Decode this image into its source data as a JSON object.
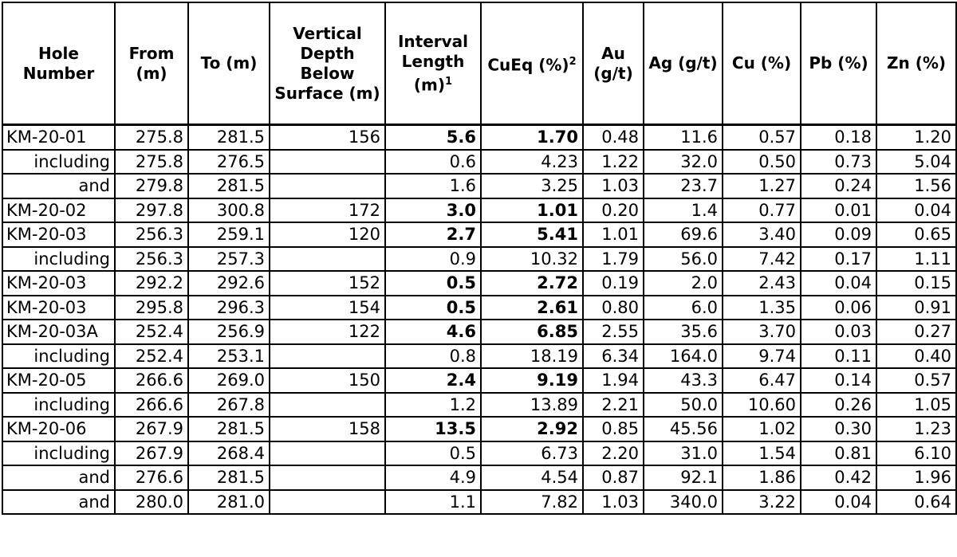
{
  "headers": [
    {
      "label": "Hole Number",
      "sup": ""
    },
    {
      "label": "From (m)",
      "sup": ""
    },
    {
      "label": "To (m)",
      "sup": ""
    },
    {
      "label": "Vertical Depth Below Surface (m)",
      "sup": ""
    },
    {
      "label": "Interval Length (m)",
      "sup": "1"
    },
    {
      "label": "CuEq (%)",
      "sup": "2"
    },
    {
      "label": "Au (g/t)",
      "sup": ""
    },
    {
      "label": "Ag (g/t)",
      "sup": ""
    },
    {
      "label": "Cu (%)",
      "sup": ""
    },
    {
      "label": "Pb (%)",
      "sup": ""
    },
    {
      "label": "Zn (%)",
      "sup": ""
    }
  ],
  "rows": [
    {
      "hole": "KM-20-01",
      "sub": false,
      "from": "275.8",
      "to": "281.5",
      "vdepth": "156",
      "interval": "5.6",
      "cueq": "1.70",
      "au": "0.48",
      "ag": "11.6",
      "cu": "0.57",
      "pb": "0.18",
      "zn": "1.20"
    },
    {
      "hole": "including",
      "sub": true,
      "from": "275.8",
      "to": "276.5",
      "vdepth": "",
      "interval": "0.6",
      "cueq": "4.23",
      "au": "1.22",
      "ag": "32.0",
      "cu": "0.50",
      "pb": "0.73",
      "zn": "5.04"
    },
    {
      "hole": "and",
      "sub": true,
      "from": "279.8",
      "to": "281.5",
      "vdepth": "",
      "interval": "1.6",
      "cueq": "3.25",
      "au": "1.03",
      "ag": "23.7",
      "cu": "1.27",
      "pb": "0.24",
      "zn": "1.56"
    },
    {
      "hole": "KM-20-02",
      "sub": false,
      "from": "297.8",
      "to": "300.8",
      "vdepth": "172",
      "interval": "3.0",
      "cueq": "1.01",
      "au": "0.20",
      "ag": "1.4",
      "cu": "0.77",
      "pb": "0.01",
      "zn": "0.04"
    },
    {
      "hole": "KM-20-03",
      "sub": false,
      "from": "256.3",
      "to": "259.1",
      "vdepth": "120",
      "interval": "2.7",
      "cueq": "5.41",
      "au": "1.01",
      "ag": "69.6",
      "cu": "3.40",
      "pb": "0.09",
      "zn": "0.65"
    },
    {
      "hole": "including",
      "sub": true,
      "from": "256.3",
      "to": "257.3",
      "vdepth": "",
      "interval": "0.9",
      "cueq": "10.32",
      "au": "1.79",
      "ag": "56.0",
      "cu": "7.42",
      "pb": "0.17",
      "zn": "1.11"
    },
    {
      "hole": "KM-20-03",
      "sub": false,
      "from": "292.2",
      "to": "292.6",
      "vdepth": "152",
      "interval": "0.5",
      "cueq": "2.72",
      "au": "0.19",
      "ag": "2.0",
      "cu": "2.43",
      "pb": "0.04",
      "zn": "0.15"
    },
    {
      "hole": "KM-20-03",
      "sub": false,
      "from": "295.8",
      "to": "296.3",
      "vdepth": "154",
      "interval": "0.5",
      "cueq": "2.61",
      "au": "0.80",
      "ag": "6.0",
      "cu": "1.35",
      "pb": "0.06",
      "zn": "0.91"
    },
    {
      "hole": "KM-20-03A",
      "sub": false,
      "from": "252.4",
      "to": "256.9",
      "vdepth": "122",
      "interval": "4.6",
      "cueq": "6.85",
      "au": "2.55",
      "ag": "35.6",
      "cu": "3.70",
      "pb": "0.03",
      "zn": "0.27"
    },
    {
      "hole": "including",
      "sub": true,
      "from": "252.4",
      "to": "253.1",
      "vdepth": "",
      "interval": "0.8",
      "cueq": "18.19",
      "au": "6.34",
      "ag": "164.0",
      "cu": "9.74",
      "pb": "0.11",
      "zn": "0.40"
    },
    {
      "hole": "KM-20-05",
      "sub": false,
      "from": "266.6",
      "to": "269.0",
      "vdepth": "150",
      "interval": "2.4",
      "cueq": "9.19",
      "au": "1.94",
      "ag": "43.3",
      "cu": "6.47",
      "pb": "0.14",
      "zn": "0.57"
    },
    {
      "hole": "including",
      "sub": true,
      "from": "266.6",
      "to": "267.8",
      "vdepth": "",
      "interval": "1.2",
      "cueq": "13.89",
      "au": "2.21",
      "ag": "50.0",
      "cu": "10.60",
      "pb": "0.26",
      "zn": "1.05"
    },
    {
      "hole": "KM-20-06",
      "sub": false,
      "from": "267.9",
      "to": "281.5",
      "vdepth": "158",
      "interval": "13.5",
      "cueq": "2.92",
      "au": "0.85",
      "ag": "45.56",
      "cu": "1.02",
      "pb": "0.30",
      "zn": "1.23"
    },
    {
      "hole": "including",
      "sub": true,
      "from": "267.9",
      "to": "268.4",
      "vdepth": "",
      "interval": "0.5",
      "cueq": "6.73",
      "au": "2.20",
      "ag": "31.0",
      "cu": "1.54",
      "pb": "0.81",
      "zn": "6.10"
    },
    {
      "hole": "and",
      "sub": true,
      "from": "276.6",
      "to": "281.5",
      "vdepth": "",
      "interval": "4.9",
      "cueq": "4.54",
      "au": "0.87",
      "ag": "92.1",
      "cu": "1.86",
      "pb": "0.42",
      "zn": "1.96"
    },
    {
      "hole": "and",
      "sub": true,
      "from": "280.0",
      "to": "281.0",
      "vdepth": "",
      "interval": "1.1",
      "cueq": "7.82",
      "au": "1.03",
      "ag": "340.0",
      "cu": "3.22",
      "pb": "0.04",
      "zn": "0.64"
    }
  ]
}
